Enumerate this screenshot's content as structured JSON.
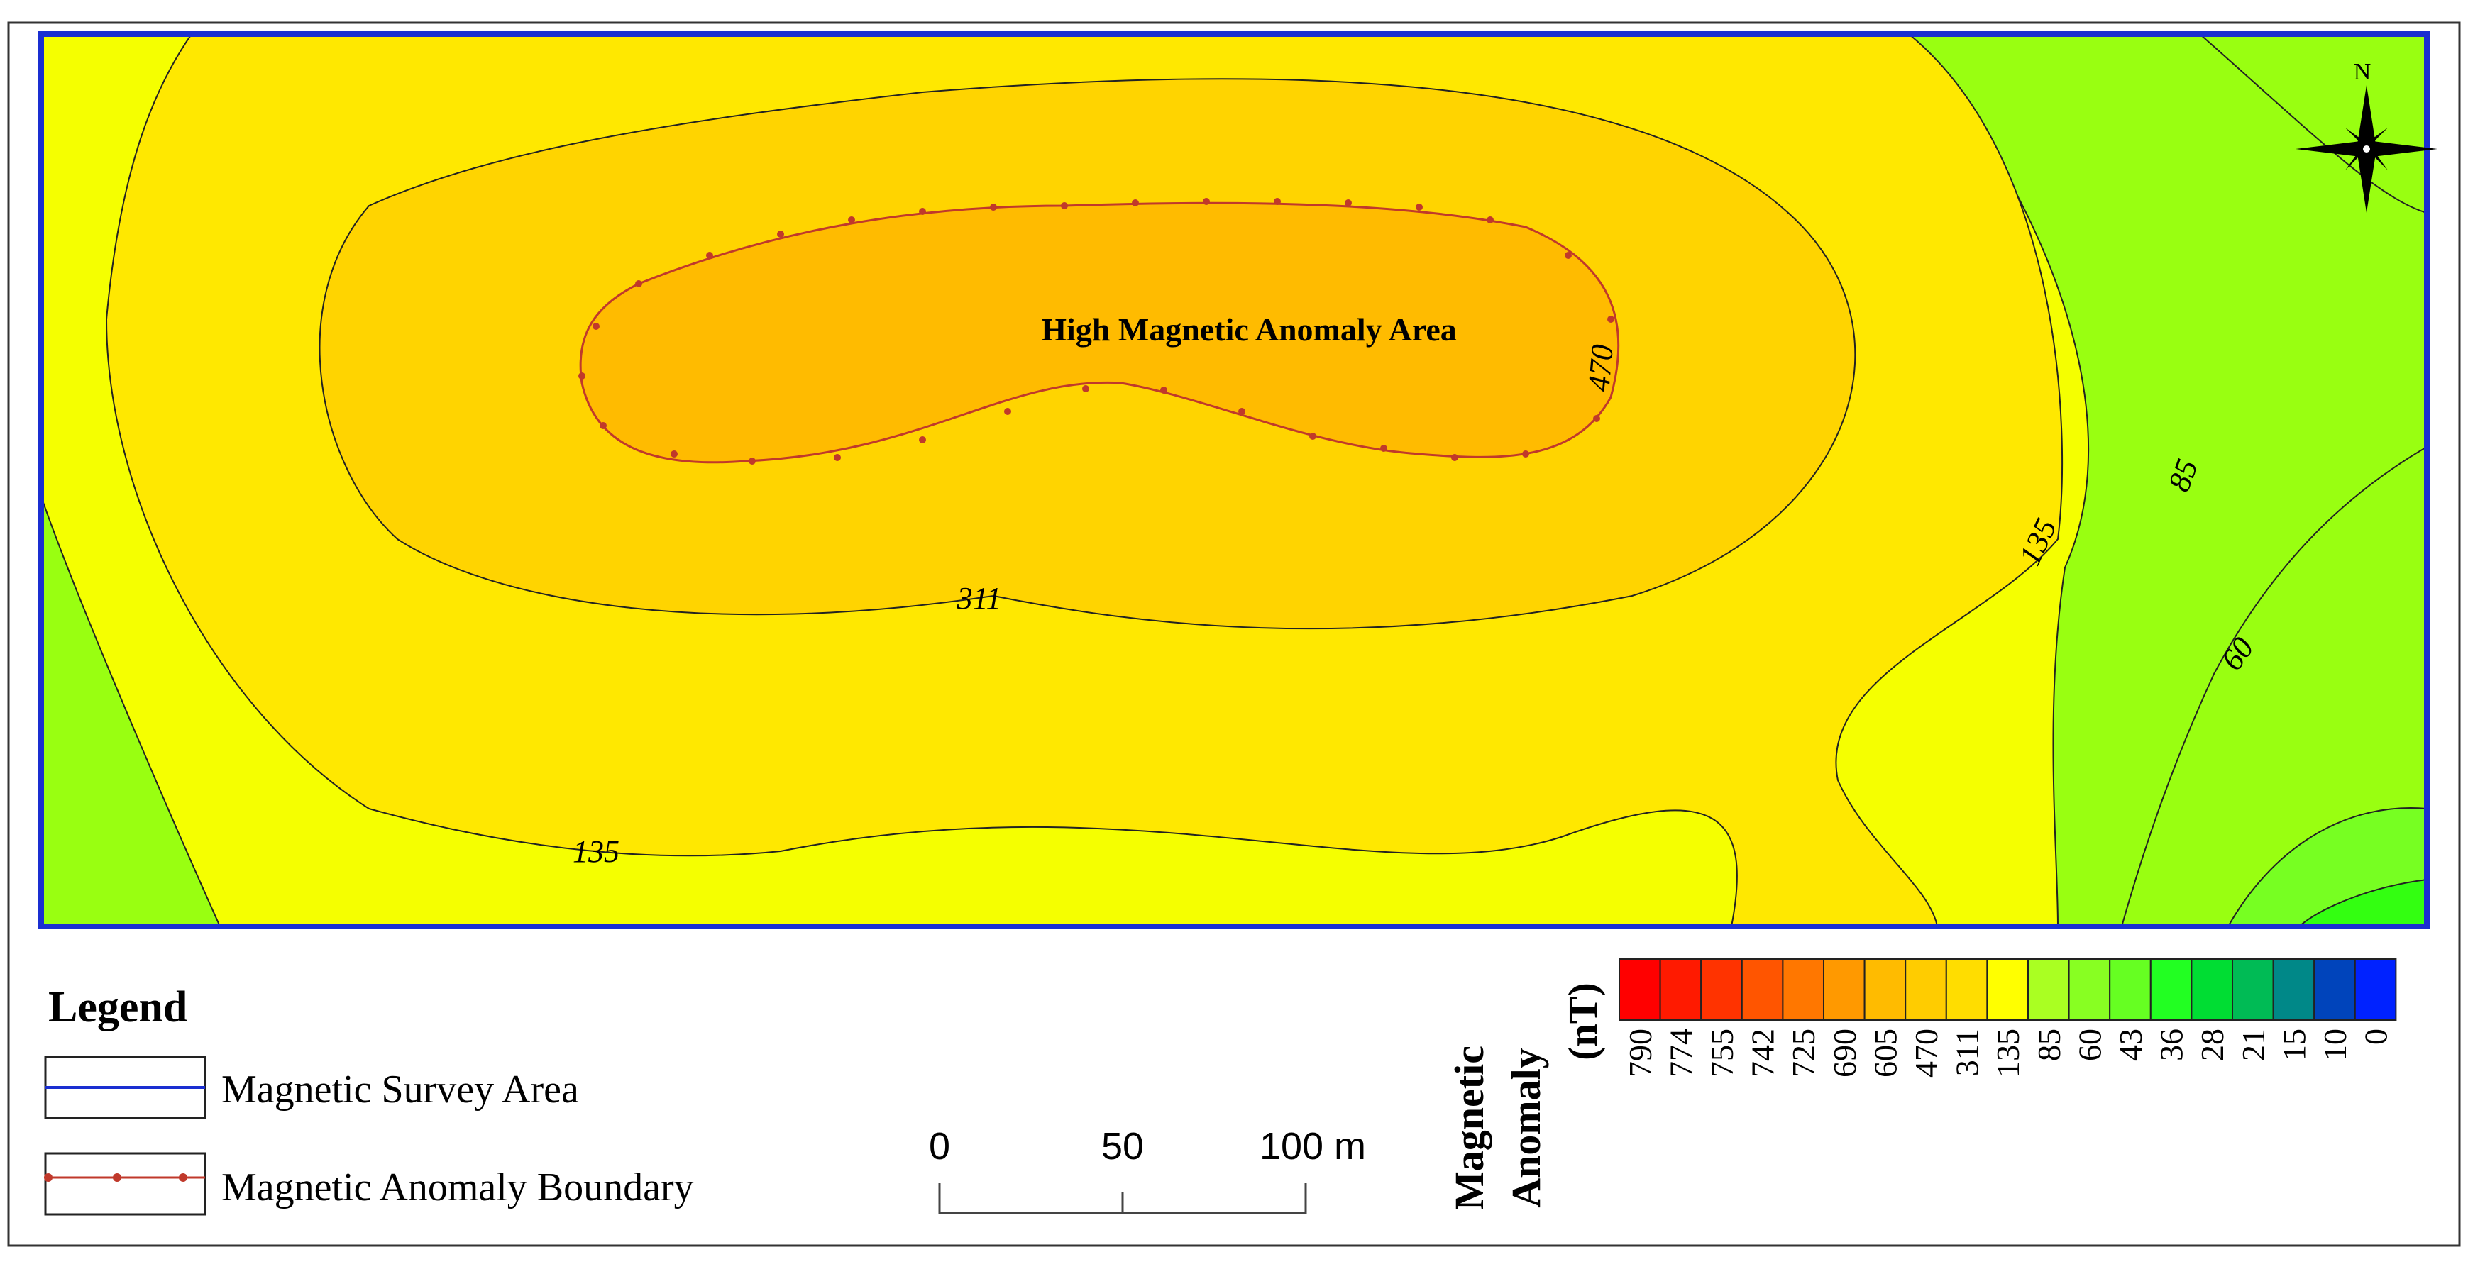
{
  "map": {
    "area_label": "High Magnetic Anomaly Area",
    "contour_labels": [
      "470",
      "311",
      "135",
      "135",
      "85",
      "60"
    ],
    "north_label": "N"
  },
  "legend": {
    "title": "Legend",
    "items": [
      {
        "label": "Magnetic Survey Area",
        "symbol": "blue-line",
        "color": "#1a2fd1"
      },
      {
        "label": "Magnetic Anomaly Boundary",
        "symbol": "red-line-with-markers",
        "color": "#c0392b"
      }
    ]
  },
  "scale_bar": {
    "labels": [
      "0",
      "50",
      "100 m"
    ]
  },
  "color_ramp": {
    "title_lines": [
      "Magnetic",
      "Anomaly",
      "(nT)"
    ],
    "classes": [
      {
        "label": "790",
        "color": "#ff0000"
      },
      {
        "label": "774",
        "color": "#ff1a00"
      },
      {
        "label": "755",
        "color": "#ff3300"
      },
      {
        "label": "742",
        "color": "#ff5500"
      },
      {
        "label": "725",
        "color": "#ff7700"
      },
      {
        "label": "690",
        "color": "#ff9900"
      },
      {
        "label": "605",
        "color": "#ffbb00"
      },
      {
        "label": "470",
        "color": "#ffcc00"
      },
      {
        "label": "311",
        "color": "#ffdd00"
      },
      {
        "label": "135",
        "color": "#ffff00"
      },
      {
        "label": "85",
        "color": "#aaff22"
      },
      {
        "label": "60",
        "color": "#88ff22"
      },
      {
        "label": "43",
        "color": "#66ff22"
      },
      {
        "label": "36",
        "color": "#22ff22"
      },
      {
        "label": "28",
        "color": "#00dd33"
      },
      {
        "label": "21",
        "color": "#00bb55"
      },
      {
        "label": "15",
        "color": "#008888"
      },
      {
        "label": "10",
        "color": "#0044bb"
      },
      {
        "label": "0",
        "color": "#0022ff"
      }
    ]
  }
}
